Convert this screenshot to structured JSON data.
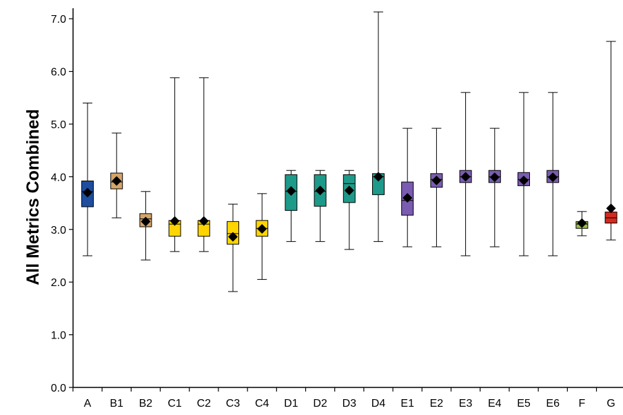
{
  "chart_data": {
    "type": "box",
    "title": "",
    "xlabel": "",
    "ylabel": "All Metrics Combined",
    "ylim": [
      0,
      7.2
    ],
    "yticks": [
      "0.0",
      "1.0",
      "2.0",
      "3.0",
      "4.0",
      "5.0",
      "6.0",
      "7.0"
    ],
    "grid": false,
    "legend": "none",
    "series": [
      {
        "category": "A",
        "color": "#1f4e9e",
        "min": 2.5,
        "q1": 3.43,
        "median": 3.72,
        "q3": 3.92,
        "max": 5.4,
        "mean": 3.7
      },
      {
        "category": "B1",
        "color": "#d4a46a",
        "min": 3.22,
        "q1": 3.77,
        "median": 3.9,
        "q3": 4.07,
        "max": 4.83,
        "mean": 3.92
      },
      {
        "category": "B2",
        "color": "#d4a46a",
        "min": 2.42,
        "q1": 3.05,
        "median": 3.2,
        "q3": 3.3,
        "max": 3.72,
        "mean": 3.15
      },
      {
        "category": "C1",
        "color": "#ffd400",
        "min": 2.58,
        "q1": 2.87,
        "median": 3.1,
        "q3": 3.17,
        "max": 5.88,
        "mean": 3.16
      },
      {
        "category": "C2",
        "color": "#ffd400",
        "min": 2.58,
        "q1": 2.87,
        "median": 3.1,
        "q3": 3.17,
        "max": 5.88,
        "mean": 3.16
      },
      {
        "category": "C3",
        "color": "#ffd400",
        "min": 1.82,
        "q1": 2.72,
        "median": 2.92,
        "q3": 3.15,
        "max": 3.48,
        "mean": 2.86
      },
      {
        "category": "C4",
        "color": "#ffd400",
        "min": 2.05,
        "q1": 2.87,
        "median": 3.02,
        "q3": 3.17,
        "max": 3.68,
        "mean": 3.01
      },
      {
        "category": "D1",
        "color": "#1e9a8a",
        "min": 2.77,
        "q1": 3.36,
        "median": 3.72,
        "q3": 4.04,
        "max": 4.12,
        "mean": 3.73
      },
      {
        "category": "D2",
        "color": "#1e9a8a",
        "min": 2.77,
        "q1": 3.44,
        "median": 3.72,
        "q3": 4.04,
        "max": 4.12,
        "mean": 3.74
      },
      {
        "category": "D3",
        "color": "#1e9a8a",
        "min": 2.62,
        "q1": 3.51,
        "median": 3.87,
        "q3": 4.04,
        "max": 4.12,
        "mean": 3.74
      },
      {
        "category": "D4",
        "color": "#1e9a8a",
        "min": 2.77,
        "q1": 3.66,
        "median": 4.0,
        "q3": 4.06,
        "max": 7.13,
        "mean": 4.0
      },
      {
        "category": "E1",
        "color": "#7a5cb0",
        "min": 2.67,
        "q1": 3.27,
        "median": 3.55,
        "q3": 3.9,
        "max": 4.92,
        "mean": 3.6
      },
      {
        "category": "E2",
        "color": "#7a5cb0",
        "min": 2.67,
        "q1": 3.8,
        "median": 3.95,
        "q3": 4.06,
        "max": 4.92,
        "mean": 3.93
      },
      {
        "category": "E3",
        "color": "#7a5cb0",
        "min": 2.5,
        "q1": 3.89,
        "median": 4.0,
        "q3": 4.12,
        "max": 5.6,
        "mean": 4.0
      },
      {
        "category": "E4",
        "color": "#7a5cb0",
        "min": 2.67,
        "q1": 3.89,
        "median": 4.0,
        "q3": 4.12,
        "max": 4.92,
        "mean": 3.99
      },
      {
        "category": "E5",
        "color": "#7a5cb0",
        "min": 2.5,
        "q1": 3.83,
        "median": 3.95,
        "q3": 4.08,
        "max": 5.6,
        "mean": 3.93
      },
      {
        "category": "E6",
        "color": "#7a5cb0",
        "min": 2.5,
        "q1": 3.89,
        "median": 4.0,
        "q3": 4.12,
        "max": 5.6,
        "mean": 3.99
      },
      {
        "category": "F",
        "color": "#9bbf4a",
        "min": 2.88,
        "q1": 3.02,
        "median": 3.1,
        "q3": 3.15,
        "max": 3.34,
        "mean": 3.12
      },
      {
        "category": "G",
        "color": "#d42a1e",
        "min": 2.8,
        "q1": 3.12,
        "median": 3.22,
        "q3": 3.33,
        "max": 6.57,
        "mean": 3.4
      }
    ]
  }
}
